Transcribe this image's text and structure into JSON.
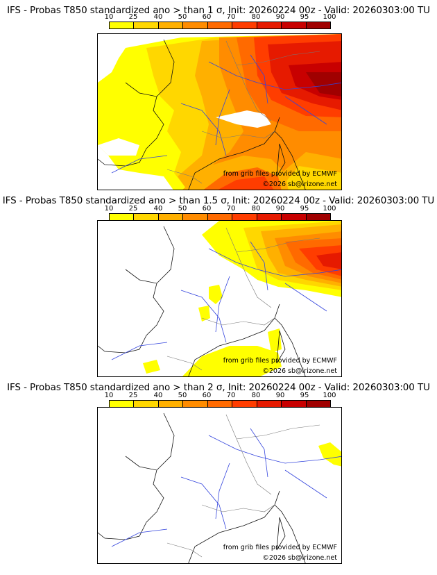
{
  "colors": [
    "#ffff00",
    "#ffd700",
    "#ffb000",
    "#ff8c00",
    "#ff6a00",
    "#ff3d00",
    "#e61a00",
    "#c80000",
    "#a00000",
    "#700000"
  ],
  "legend_ticks": [
    "10",
    "25",
    "40",
    "50",
    "60",
    "70",
    "80",
    "90",
    "95",
    "100"
  ],
  "panels": [
    {
      "title": "IFS - Probas T850  standardized ano > than 1 σ, Init: 20260224 00z - Valid: 20260303:00 TU",
      "threshold_sigma": 1,
      "credit_source": "from grib files provided by ECMWF",
      "credit_copyright": "©2026 sb@irizone.net"
    },
    {
      "title": "IFS - Probas T850  standardized ano > than 1.5 σ, Init: 20260224 00z - Valid: 20260303:00 TU",
      "threshold_sigma": 1.5,
      "credit_source": "from grib files provided by ECMWF",
      "credit_copyright": "©2026 sb@irizone.net"
    },
    {
      "title": "IFS - Probas T850  standardized ano > than 2 σ, Init: 20260224 00z - Valid: 20260303:00 TU",
      "threshold_sigma": 2,
      "credit_source": "from grib files provided by ECMWF",
      "credit_copyright": "©2026 sb@irizone.net"
    }
  ]
}
